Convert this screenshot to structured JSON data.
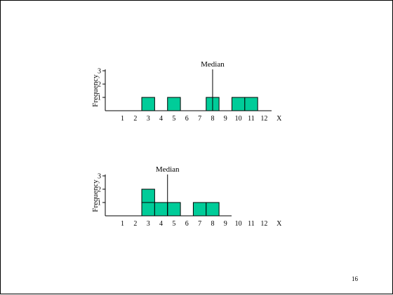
{
  "slide": {
    "page_number": "16"
  },
  "colors": {
    "bar_fill": "#00CC99",
    "ink": "#000000"
  },
  "chart_data": [
    {
      "type": "bar",
      "title": "",
      "xlabel": "",
      "ylabel": "Frequency",
      "x_ticks": [
        "1",
        "2",
        "3",
        "4",
        "5",
        "6",
        "7",
        "8",
        "9",
        "10",
        "11",
        "12",
        "X"
      ],
      "y_ticks": [
        "1",
        "2",
        "3"
      ],
      "ylim": [
        0,
        3
      ],
      "grid": false,
      "stacked_unit_squares": true,
      "frequencies": [
        {
          "x": 3,
          "count": 1
        },
        {
          "x": 5,
          "count": 1
        },
        {
          "x": 8,
          "count": 1
        },
        {
          "x": 10,
          "count": 1
        },
        {
          "x": 11,
          "count": 1
        }
      ],
      "median": {
        "label": "Median",
        "x": 8
      }
    },
    {
      "type": "bar",
      "title": "",
      "xlabel": "",
      "ylabel": "Frequency",
      "x_ticks": [
        "1",
        "2",
        "3",
        "4",
        "5",
        "6",
        "7",
        "8",
        "9",
        "10",
        "11",
        "12",
        "X"
      ],
      "y_ticks": [
        "1",
        "2",
        "3"
      ],
      "ylim": [
        0,
        3
      ],
      "grid": false,
      "stacked_unit_squares": true,
      "frequencies": [
        {
          "x": 3,
          "count": 2
        },
        {
          "x": 4,
          "count": 1
        },
        {
          "x": 5,
          "count": 1
        },
        {
          "x": 7,
          "count": 1
        },
        {
          "x": 8,
          "count": 1
        }
      ],
      "median": {
        "label": "Median",
        "x": 4.5
      }
    }
  ]
}
